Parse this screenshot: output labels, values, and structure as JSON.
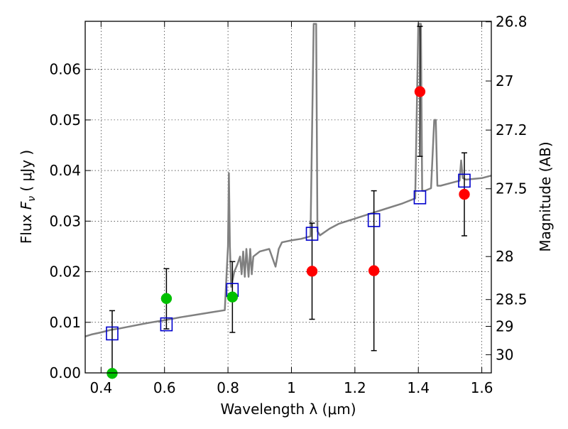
{
  "chart_data": {
    "type": "scatter",
    "xlabel": "Wavelength  λ (μm)",
    "ylabel": "Flux  F_ν  ( μJy )",
    "ylabel_parts": {
      "prefix": "Flux ",
      "symbol": "F",
      "subscript": "ν",
      "suffix": " ( μJy )"
    },
    "y2label": "Magnitude (AB)",
    "xlim": [
      0.35,
      1.63
    ],
    "ylim": [
      0.0,
      0.0695
    ],
    "grid": true,
    "xticks": [
      0.4,
      0.6,
      0.8,
      1.0,
      1.2,
      1.4,
      1.6
    ],
    "xtick_labels": [
      "0.4",
      "0.6",
      "0.8",
      "1",
      "1.2",
      "1.4",
      "1.6"
    ],
    "yticks": [
      0.0,
      0.01,
      0.02,
      0.03,
      0.04,
      0.05,
      0.06
    ],
    "ytick_labels": [
      "0.00",
      "0.01",
      "0.02",
      "0.03",
      "0.04",
      "0.05",
      "0.06"
    ],
    "y2ticks": [
      {
        "label": "26.8",
        "flux": 0.0694
      },
      {
        "label": "27",
        "flux": 0.0577
      },
      {
        "label": "27.2",
        "flux": 0.048
      },
      {
        "label": "27.5",
        "flux": 0.0364
      },
      {
        "label": "28",
        "flux": 0.023
      },
      {
        "label": "28.5",
        "flux": 0.0145
      },
      {
        "label": "29",
        "flux": 0.0092
      },
      {
        "label": "30",
        "flux": 0.0036
      }
    ],
    "model_color": "#808080",
    "model_spectrum": {
      "x": [
        0.35,
        0.37,
        0.4,
        0.43,
        0.46,
        0.5,
        0.55,
        0.6,
        0.65,
        0.7,
        0.75,
        0.79,
        0.8,
        0.803,
        0.806,
        0.81,
        0.82,
        0.83,
        0.838,
        0.843,
        0.848,
        0.853,
        0.858,
        0.865,
        0.87,
        0.875,
        0.88,
        0.9,
        0.93,
        0.95,
        0.96,
        0.97,
        1.0,
        1.03,
        1.06,
        1.07,
        1.074,
        1.078,
        1.082,
        1.09,
        1.12,
        1.15,
        1.2,
        1.25,
        1.3,
        1.35,
        1.39,
        1.4,
        1.404,
        1.408,
        1.412,
        1.42,
        1.44,
        1.45,
        1.455,
        1.46,
        1.47,
        1.5,
        1.53,
        1.535,
        1.54,
        1.55,
        1.6,
        1.63
      ],
      "y": [
        0.0072,
        0.0076,
        0.008,
        0.0085,
        0.0088,
        0.0093,
        0.0099,
        0.0104,
        0.011,
        0.0115,
        0.012,
        0.0124,
        0.025,
        0.0395,
        0.025,
        0.017,
        0.02,
        0.0215,
        0.023,
        0.0195,
        0.024,
        0.019,
        0.0245,
        0.019,
        0.0245,
        0.0195,
        0.023,
        0.024,
        0.0245,
        0.021,
        0.0245,
        0.0258,
        0.0262,
        0.0265,
        0.027,
        0.069,
        0.069,
        0.069,
        0.028,
        0.0272,
        0.0285,
        0.0295,
        0.0305,
        0.0315,
        0.0325,
        0.0335,
        0.0345,
        0.069,
        0.069,
        0.069,
        0.036,
        0.036,
        0.0365,
        0.05,
        0.05,
        0.037,
        0.037,
        0.0375,
        0.038,
        0.042,
        0.0385,
        0.0382,
        0.0385,
        0.039
      ]
    },
    "model_photometry": {
      "color": "#0000cc",
      "x": [
        0.435,
        0.606,
        0.814,
        1.065,
        1.26,
        1.405,
        1.545
      ],
      "y": [
        0.0078,
        0.0096,
        0.0164,
        0.0275,
        0.0302,
        0.0347,
        0.038
      ]
    },
    "observed_red": {
      "color": "#ff0000",
      "x": [
        1.065,
        1.26,
        1.405,
        1.545
      ],
      "y": [
        0.0201,
        0.0202,
        0.0556,
        0.0353
      ],
      "err_low": [
        0.0106,
        0.0044,
        0.0428,
        0.0271
      ],
      "err_high": [
        0.0296,
        0.036,
        0.0685,
        0.0435
      ]
    },
    "observed_green": {
      "color": "#00c000",
      "x": [
        0.435,
        0.606,
        0.814
      ],
      "y": [
        -0.0001,
        0.0147,
        0.015
      ],
      "err_low": [
        -0.0001,
        0.0087,
        0.008
      ],
      "err_high": [
        0.0123,
        0.0206,
        0.022
      ]
    }
  }
}
